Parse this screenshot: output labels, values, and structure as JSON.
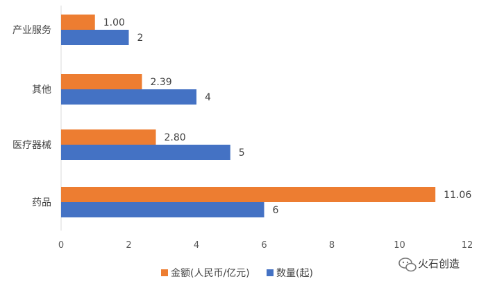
{
  "chart_data": {
    "type": "bar",
    "orientation": "horizontal",
    "categories": [
      "产业服务",
      "其他",
      "医疗器械",
      "药品"
    ],
    "series": [
      {
        "name": "金额(人民币/亿元)",
        "color": "#ED7D31",
        "values": [
          1.0,
          2.39,
          2.8,
          11.06
        ],
        "labels": [
          "1.00",
          "2.39",
          "2.80",
          "11.06"
        ]
      },
      {
        "name": "数量(起)",
        "color": "#4472C4",
        "values": [
          2,
          4,
          5,
          6
        ],
        "labels": [
          "2",
          "4",
          "5",
          "6"
        ]
      }
    ],
    "xlim": [
      0,
      12
    ],
    "xticks": [
      "0",
      "2",
      "4",
      "6",
      "8",
      "10",
      "12"
    ],
    "xlabel": "",
    "ylabel": "",
    "grid": false,
    "legend_position": "bottom"
  },
  "watermark": {
    "text": "火石创造",
    "icon": "wechat-icon"
  }
}
